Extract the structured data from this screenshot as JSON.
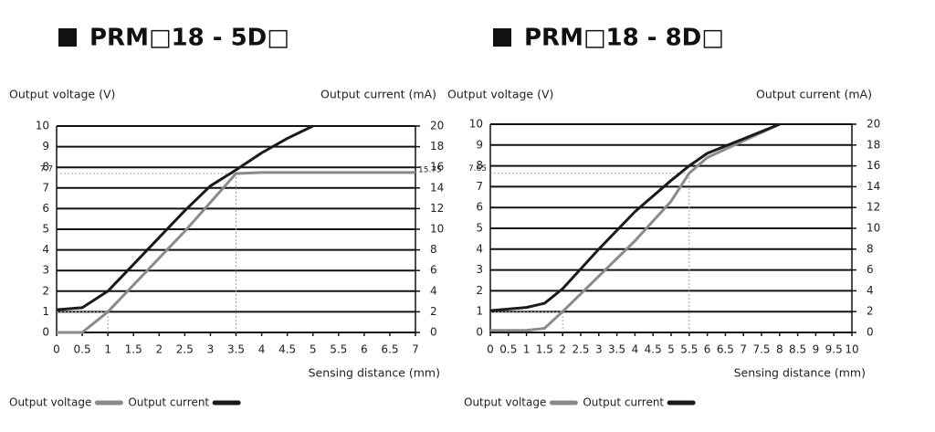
{
  "chart_data": [
    {
      "type": "line",
      "title": "PRM□18 - 5D□",
      "y_label": "Output voltage (V)",
      "y2_label": "Output current (mA)",
      "x_label": "Sensing distance (mm)",
      "xlim": [
        0,
        7
      ],
      "xticks": [
        0,
        0.5,
        1,
        1.5,
        2,
        2.5,
        3,
        3.5,
        4,
        4.5,
        5,
        5.5,
        6,
        6.5,
        7
      ],
      "ylim": [
        0,
        10
      ],
      "yticks": [
        0,
        1,
        2,
        3,
        4,
        5,
        6,
        7,
        8,
        9,
        10
      ],
      "y2lim": [
        0,
        20
      ],
      "y2ticks": [
        0,
        2,
        4,
        6,
        8,
        10,
        12,
        14,
        16,
        18,
        20
      ],
      "grid": true,
      "legend": "bottom-left",
      "series": [
        {
          "name": "Output voltage",
          "color": "#8a8a8a",
          "x": [
            0,
            0.5,
            1,
            1.5,
            2,
            2.5,
            3,
            3.5,
            4,
            5,
            6,
            7
          ],
          "values": [
            0,
            0,
            1,
            2.3,
            3.6,
            4.9,
            6.3,
            7.7,
            7.75,
            7.75,
            7.75,
            7.75
          ]
        },
        {
          "name": "Output current",
          "color": "#1a1a1a",
          "axis": "y2",
          "x": [
            0,
            0.5,
            1,
            1.5,
            2,
            2.5,
            3,
            3.5,
            4,
            4.5,
            5
          ],
          "values": [
            2.2,
            2.4,
            4,
            6.6,
            9.2,
            11.8,
            14.2,
            15.75,
            17.4,
            18.8,
            20
          ]
        }
      ],
      "annotations": [
        {
          "value": 7.7,
          "axis": "y"
        },
        {
          "value": 15.75,
          "axis": "y2"
        }
      ],
      "guides": [
        {
          "x": 3.5,
          "y": 7.7
        },
        {
          "x": 1,
          "y": 1
        }
      ]
    },
    {
      "type": "line",
      "title": "PRM□18 - 8D□",
      "y_label": "Output voltage (V)",
      "y2_label": "Output current (mA)",
      "x_label": "Sensing distance (mm)",
      "xlim": [
        0,
        10
      ],
      "xticks": [
        0,
        0.5,
        1,
        1.5,
        2,
        2.5,
        3,
        3.5,
        4,
        4.5,
        5,
        5.5,
        6,
        6.5,
        7,
        7.5,
        8,
        8.5,
        9,
        9.5,
        10
      ],
      "ylim": [
        0,
        10
      ],
      "yticks": [
        0,
        1,
        2,
        3,
        4,
        5,
        6,
        7,
        8,
        9,
        10
      ],
      "y2lim": [
        0,
        20
      ],
      "y2ticks": [
        0,
        2,
        4,
        6,
        8,
        10,
        12,
        14,
        16,
        18,
        20
      ],
      "grid": true,
      "legend": "bottom-left",
      "series": [
        {
          "name": "Output voltage",
          "color": "#8a8a8a",
          "x": [
            0,
            1,
            1.5,
            2,
            3,
            4,
            5,
            5.5,
            6,
            6.5,
            7,
            7.5,
            8
          ],
          "values": [
            0.1,
            0.1,
            0.2,
            1,
            2.7,
            4.4,
            6.3,
            7.65,
            8.4,
            8.8,
            9.2,
            9.6,
            10
          ]
        },
        {
          "name": "Output current",
          "color": "#1a1a1a",
          "axis": "y2",
          "x": [
            0,
            1,
            1.5,
            2,
            3,
            4,
            5,
            5.5,
            6,
            7,
            8
          ],
          "values": [
            2.1,
            2.4,
            2.8,
            4.2,
            8,
            11.6,
            14.6,
            16,
            17.2,
            18.6,
            20
          ]
        }
      ],
      "annotations": [
        {
          "value": 7.65,
          "axis": "y"
        }
      ],
      "guides": [
        {
          "x": 5.5,
          "y": 7.65
        },
        {
          "x": 2,
          "y": 1
        }
      ]
    }
  ]
}
